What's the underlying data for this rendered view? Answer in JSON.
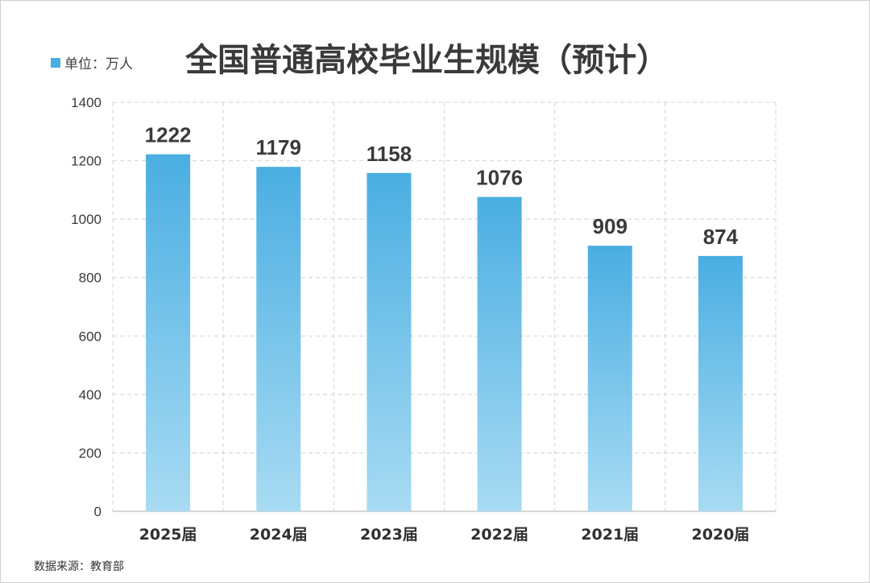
{
  "chart_data": {
    "type": "bar",
    "title": "全国普通高校毕业生规模（预计）",
    "legend": {
      "label": "单位：万人",
      "color": "#4aaee2",
      "placement": "top-left"
    },
    "categories": [
      "2025届",
      "2024届",
      "2023届",
      "2022届",
      "2021届",
      "2020届"
    ],
    "values": [
      1222,
      1179,
      1158,
      1076,
      909,
      874
    ],
    "data_labels": [
      "1222",
      "1179",
      "1158",
      "1076",
      "909",
      "874"
    ],
    "ylim": [
      0,
      1400
    ],
    "yticks": [
      0,
      200,
      400,
      600,
      800,
      1000,
      1200,
      1400
    ],
    "grid": true,
    "bar_color_top": "#4aaee2",
    "bar_color_bottom": "#a8dbf3",
    "source": "数据来源：教育部"
  }
}
